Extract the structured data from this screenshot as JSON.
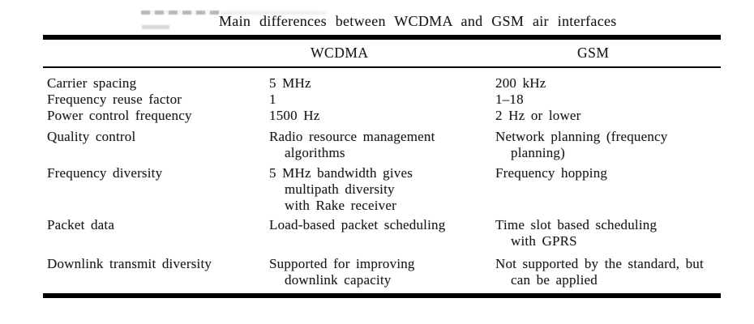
{
  "title": "Main differences between WCDMA and GSM air interfaces",
  "table": {
    "header": {
      "wcdma": "WCDMA",
      "gsm": "GSM"
    },
    "rows": [
      {
        "feature": "Carrier spacing",
        "wcdma": [
          "5 MHz"
        ],
        "gsm": [
          "200 kHz"
        ]
      },
      {
        "feature": "Frequency reuse factor",
        "wcdma": [
          "1"
        ],
        "gsm": [
          "1–18"
        ]
      },
      {
        "feature": "Power control frequency",
        "wcdma": [
          "1500 Hz"
        ],
        "gsm": [
          "2 Hz or lower"
        ]
      },
      {
        "feature": "Quality control",
        "wcdma": [
          "Radio resource management",
          "algorithms"
        ],
        "gsm": [
          "Network planning (frequency",
          "planning)"
        ]
      },
      {
        "feature": "Frequency diversity",
        "wcdma": [
          "5 MHz bandwidth gives",
          "multipath diversity",
          "with Rake receiver"
        ],
        "gsm": [
          "Frequency hopping"
        ]
      },
      {
        "feature": "Packet data",
        "wcdma": [
          "Load-based packet scheduling"
        ],
        "gsm": [
          "Time slot based scheduling",
          "with GPRS"
        ]
      },
      {
        "feature": "Downlink transmit diversity",
        "wcdma": [
          "Supported for improving",
          "downlink capacity"
        ],
        "gsm": [
          "Not supported by the standard, but",
          "can be applied"
        ]
      }
    ]
  },
  "colors": {
    "text": "#1a1a1a",
    "rule": "#000000",
    "background": "#ffffff"
  }
}
